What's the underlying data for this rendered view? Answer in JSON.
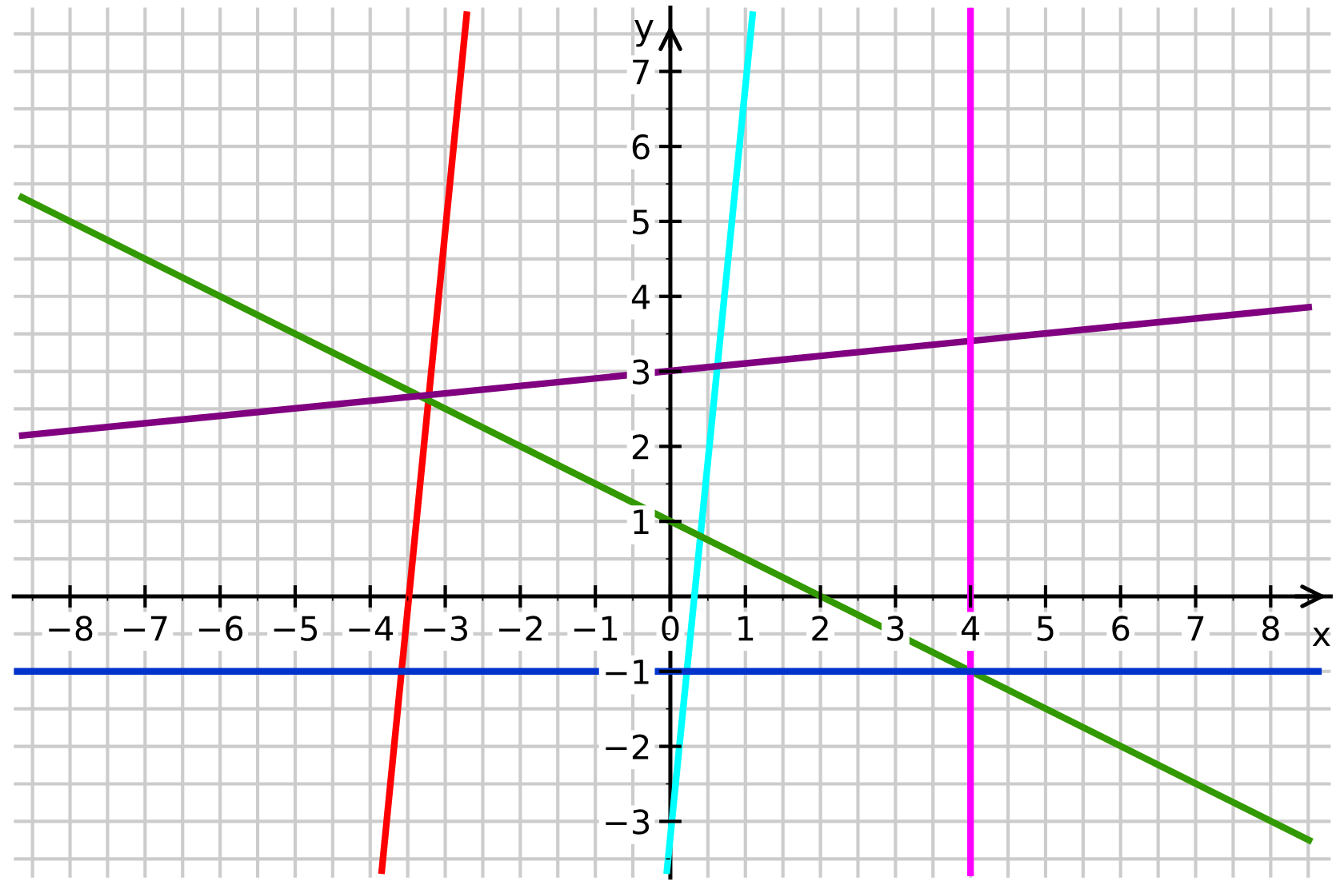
{
  "chart_data": {
    "type": "line",
    "xlabel": "x",
    "ylabel": "y",
    "xlim": [
      -8.75,
      8.8
    ],
    "ylim": [
      -3.75,
      7.85
    ],
    "xticks": [
      {
        "value": -8,
        "label": "−8"
      },
      {
        "value": -7,
        "label": "−7"
      },
      {
        "value": -6,
        "label": "−6"
      },
      {
        "value": -5,
        "label": "−5"
      },
      {
        "value": -4,
        "label": "−4"
      },
      {
        "value": -3,
        "label": "−3"
      },
      {
        "value": -2,
        "label": "−2"
      },
      {
        "value": -1,
        "label": "−1"
      },
      0,
      1,
      2,
      3,
      4,
      5,
      6,
      7,
      8
    ],
    "yticks": [
      {
        "value": -3,
        "label": "−3"
      },
      {
        "value": -2,
        "label": "−2"
      },
      {
        "value": -1,
        "label": "−1"
      },
      1,
      2,
      3,
      4,
      5,
      6,
      7
    ],
    "grid": true,
    "line_style": "solid",
    "marker": "none",
    "series": [
      {
        "color": "#ff0000",
        "x": [
          -3.85,
          -2.71
        ],
        "values": [
          -3.7,
          7.8
        ]
      },
      {
        "color": "#00ffff",
        "x": [
          -0.05,
          1.1
        ],
        "values": [
          -3.7,
          7.8
        ]
      },
      {
        "color": "#339900",
        "x": [
          -8.68,
          8.55
        ],
        "values": [
          5.34,
          -3.27
        ]
      },
      {
        "color": "#800080",
        "x": [
          -8.68,
          8.55
        ],
        "values": [
          2.14,
          3.86
        ]
      },
      {
        "color": "#ff00ff",
        "x": [
          4,
          4
        ],
        "values": [
          -3.73,
          7.85
        ]
      },
      {
        "color": "#0033cc",
        "x": [
          -8.75,
          8.68
        ],
        "values": [
          -1,
          -1
        ]
      }
    ]
  }
}
